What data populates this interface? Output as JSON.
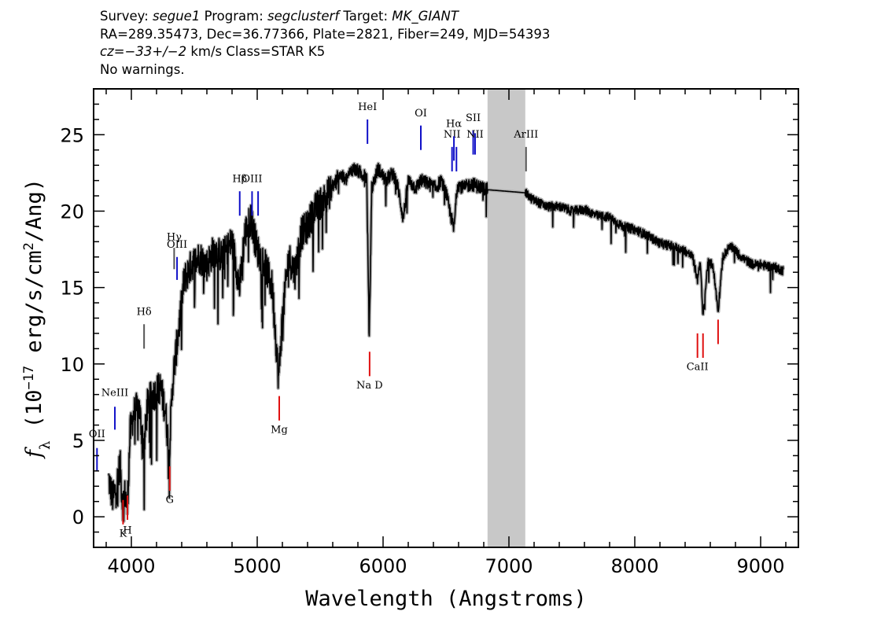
{
  "header": {
    "line1_prefix_survey": "Survey: ",
    "survey": "segue1",
    "line1_prefix_program": " Program: ",
    "program": "segclusterf",
    "line1_prefix_target": " Target: ",
    "target": "MK_GIANT",
    "line2": "RA=289.35473, Dec=36.77366, Plate=2821, Fiber=249, MJD=54393",
    "line3_cz": "cz=−33+/−2",
    "line3_rest": " km/s Class=STAR K5",
    "line4": "No warnings."
  },
  "chart_data": {
    "type": "line",
    "xlabel": "Wavelength (Angstroms)",
    "ylabel": "f_λ (10^-17 erg/s/cm^2/Ang)",
    "ylabel_parts": {
      "f": "f",
      "lambda": "λ",
      "open": " (10",
      "exp1": "−17",
      "mid": " erg/s/cm",
      "exp2": "2",
      "close": "/Ang)"
    },
    "xlim": [
      3700,
      9300
    ],
    "ylim": [
      -2,
      28
    ],
    "x_ticks": [
      4000,
      5000,
      6000,
      7000,
      8000,
      9000
    ],
    "x_tick_labels": [
      "4000",
      "5000",
      "6000",
      "7000",
      "8000",
      "9000"
    ],
    "y_ticks": [
      0,
      5,
      10,
      15,
      20,
      25
    ],
    "y_tick_labels": [
      "0",
      "5",
      "10",
      "15",
      "20",
      "25"
    ],
    "masked_region": [
      6830,
      7130
    ],
    "colors": {
      "spectrum": "#000000",
      "error": "#b0b0b0",
      "emission": "#1010c8",
      "absorption": "#e01010",
      "neutral": "#555555",
      "mask": "#c8c8c8"
    },
    "spectrum_envelope": [
      {
        "x": 3820,
        "y": 2.5
      },
      {
        "x": 3850,
        "y": 1.2
      },
      {
        "x": 3880,
        "y": 1.8
      },
      {
        "x": 3910,
        "y": 3.5
      },
      {
        "x": 3930,
        "y": 0.8
      },
      {
        "x": 3950,
        "y": 1.5
      },
      {
        "x": 3968,
        "y": 0.6
      },
      {
        "x": 3990,
        "y": 5.5
      },
      {
        "x": 4020,
        "y": 6.8
      },
      {
        "x": 4060,
        "y": 7.2
      },
      {
        "x": 4101,
        "y": 4.5
      },
      {
        "x": 4130,
        "y": 7.5
      },
      {
        "x": 4180,
        "y": 8.0
      },
      {
        "x": 4230,
        "y": 8.5
      },
      {
        "x": 4270,
        "y": 7.0
      },
      {
        "x": 4300,
        "y": 4.2
      },
      {
        "x": 4330,
        "y": 9.0
      },
      {
        "x": 4380,
        "y": 12.5
      },
      {
        "x": 4420,
        "y": 15.5
      },
      {
        "x": 4480,
        "y": 16.5
      },
      {
        "x": 4540,
        "y": 17.0
      },
      {
        "x": 4600,
        "y": 16.5
      },
      {
        "x": 4660,
        "y": 17.5
      },
      {
        "x": 4720,
        "y": 17.0
      },
      {
        "x": 4800,
        "y": 18.0
      },
      {
        "x": 4861,
        "y": 15.0
      },
      {
        "x": 4900,
        "y": 18.5
      },
      {
        "x": 4950,
        "y": 19.5
      },
      {
        "x": 5000,
        "y": 17.5
      },
      {
        "x": 5060,
        "y": 16.5
      },
      {
        "x": 5120,
        "y": 15.0
      },
      {
        "x": 5170,
        "y": 9.0
      },
      {
        "x": 5200,
        "y": 13.0
      },
      {
        "x": 5250,
        "y": 17.0
      },
      {
        "x": 5300,
        "y": 16.0
      },
      {
        "x": 5350,
        "y": 18.5
      },
      {
        "x": 5400,
        "y": 19.0
      },
      {
        "x": 5450,
        "y": 20.0
      },
      {
        "x": 5500,
        "y": 20.5
      },
      {
        "x": 5550,
        "y": 21.0
      },
      {
        "x": 5600,
        "y": 21.5
      },
      {
        "x": 5650,
        "y": 22.5
      },
      {
        "x": 5700,
        "y": 22.0
      },
      {
        "x": 5760,
        "y": 22.8
      },
      {
        "x": 5820,
        "y": 22.5
      },
      {
        "x": 5870,
        "y": 22.2
      },
      {
        "x": 5890,
        "y": 11.8
      },
      {
        "x": 5910,
        "y": 21.5
      },
      {
        "x": 5960,
        "y": 22.8
      },
      {
        "x": 6020,
        "y": 22.0
      },
      {
        "x": 6080,
        "y": 22.5
      },
      {
        "x": 6120,
        "y": 21.5
      },
      {
        "x": 6160,
        "y": 19.5
      },
      {
        "x": 6200,
        "y": 22.0
      },
      {
        "x": 6260,
        "y": 21.5
      },
      {
        "x": 6300,
        "y": 22.0
      },
      {
        "x": 6360,
        "y": 21.8
      },
      {
        "x": 6420,
        "y": 21.5
      },
      {
        "x": 6460,
        "y": 22.0
      },
      {
        "x": 6500,
        "y": 21.2
      },
      {
        "x": 6530,
        "y": 20.0
      },
      {
        "x": 6563,
        "y": 18.8
      },
      {
        "x": 6590,
        "y": 21.8
      },
      {
        "x": 6640,
        "y": 21.5
      },
      {
        "x": 6700,
        "y": 21.8
      },
      {
        "x": 6760,
        "y": 21.6
      },
      {
        "x": 6830,
        "y": 21.4
      },
      {
        "x": 7130,
        "y": 21.2
      },
      {
        "x": 7180,
        "y": 20.8
      },
      {
        "x": 7250,
        "y": 20.5
      },
      {
        "x": 7300,
        "y": 20.3
      },
      {
        "x": 7400,
        "y": 20.3
      },
      {
        "x": 7500,
        "y": 20.0
      },
      {
        "x": 7600,
        "y": 20.1
      },
      {
        "x": 7700,
        "y": 19.7
      },
      {
        "x": 7800,
        "y": 19.6
      },
      {
        "x": 7900,
        "y": 19.0
      },
      {
        "x": 8000,
        "y": 18.8
      },
      {
        "x": 8100,
        "y": 18.4
      },
      {
        "x": 8200,
        "y": 17.9
      },
      {
        "x": 8300,
        "y": 17.7
      },
      {
        "x": 8400,
        "y": 17.4
      },
      {
        "x": 8460,
        "y": 17.0
      },
      {
        "x": 8498,
        "y": 15.5
      },
      {
        "x": 8520,
        "y": 16.8
      },
      {
        "x": 8542,
        "y": 13.0
      },
      {
        "x": 8580,
        "y": 16.6
      },
      {
        "x": 8620,
        "y": 16.5
      },
      {
        "x": 8662,
        "y": 13.5
      },
      {
        "x": 8700,
        "y": 17.0
      },
      {
        "x": 8760,
        "y": 17.8
      },
      {
        "x": 8820,
        "y": 17.2
      },
      {
        "x": 8880,
        "y": 16.8
      },
      {
        "x": 8940,
        "y": 16.5
      },
      {
        "x": 9000,
        "y": 16.5
      },
      {
        "x": 9060,
        "y": 16.4
      },
      {
        "x": 9120,
        "y": 16.3
      },
      {
        "x": 9180,
        "y": 16.1
      }
    ],
    "spectral_lines": [
      {
        "label": "OII",
        "x": 3727,
        "y0": 3.0,
        "y1": 4.5,
        "label_y": 5.2,
        "kind": "emission"
      },
      {
        "label": "NeIII",
        "x": 3869,
        "y0": 5.7,
        "y1": 7.2,
        "label_y": 7.9,
        "kind": "emission"
      },
      {
        "label": "Hδ",
        "x": 4101,
        "y0": 11.0,
        "y1": 12.6,
        "label_y": 13.2,
        "kind": "neutral"
      },
      {
        "label": "Hγ",
        "x": 4340,
        "y0": 16.2,
        "y1": 17.6,
        "label_y": 18.1,
        "kind": "neutral"
      },
      {
        "label": "OIII",
        "x": 4363,
        "y0": 15.5,
        "y1": 17.0,
        "label_y": 17.6,
        "kind": "emission"
      },
      {
        "label": "Hβ",
        "x": 4861,
        "y0": 19.7,
        "y1": 21.3,
        "label_y": 21.9,
        "kind": "emission"
      },
      {
        "label": "OIII",
        "x": 4959,
        "y0": 19.7,
        "y1": 21.3,
        "label_y": 21.9,
        "kind": "emission"
      },
      {
        "label": "",
        "x": 5007,
        "y0": 19.7,
        "y1": 21.3,
        "label_y": 21.9,
        "kind": "emission"
      },
      {
        "label": "HeI",
        "x": 5876,
        "y0": 24.4,
        "y1": 26.0,
        "label_y": 26.6,
        "kind": "emission"
      },
      {
        "label": "OI",
        "x": 6300,
        "y0": 24.0,
        "y1": 25.6,
        "label_y": 26.2,
        "kind": "emission"
      },
      {
        "label": "NII",
        "x": 6548,
        "y0": 22.6,
        "y1": 24.2,
        "label_y": 24.8,
        "kind": "emission"
      },
      {
        "label": "Hα",
        "x": 6563,
        "y0": 23.3,
        "y1": 24.9,
        "label_y": 25.5,
        "kind": "emission"
      },
      {
        "label": "",
        "x": 6583,
        "y0": 22.6,
        "y1": 24.2,
        "label_y": 24.8,
        "kind": "emission"
      },
      {
        "label": "SII",
        "x": 6716,
        "y0": 23.7,
        "y1": 25.3,
        "label_y": 25.9,
        "kind": "emission"
      },
      {
        "label": "NII",
        "x": 6731,
        "y0": 23.7,
        "y1": 25.1,
        "label_y": 24.8,
        "kind": "emission"
      },
      {
        "label": "ArIII",
        "x": 7136,
        "y0": 22.6,
        "y1": 24.2,
        "label_y": 24.8,
        "kind": "neutral"
      },
      {
        "label": "K",
        "x": 3934,
        "y0": -0.5,
        "y1": 1.1,
        "label_y": -1.3,
        "kind": "absorption"
      },
      {
        "label": "H",
        "x": 3969,
        "y0": -0.2,
        "y1": 1.4,
        "label_y": -1.1,
        "kind": "absorption"
      },
      {
        "label": "G",
        "x": 4305,
        "y0": 1.7,
        "y1": 3.3,
        "label_y": 0.9,
        "kind": "absorption"
      },
      {
        "label": "Mg",
        "x": 5175,
        "y0": 6.3,
        "y1": 7.9,
        "label_y": 5.5,
        "kind": "absorption"
      },
      {
        "label": "Na  D",
        "x": 5893,
        "y0": 9.2,
        "y1": 10.8,
        "label_y": 8.4,
        "kind": "absorption"
      },
      {
        "label": "CaII",
        "x": 8498,
        "y0": 10.4,
        "y1": 12.0,
        "label_y": 9.6,
        "kind": "absorption"
      },
      {
        "label": "",
        "x": 8542,
        "y0": 10.4,
        "y1": 12.0,
        "label_y": 9.6,
        "kind": "absorption"
      },
      {
        "label": "",
        "x": 8662,
        "y0": 11.3,
        "y1": 12.9,
        "label_y": 10.5,
        "kind": "absorption"
      }
    ]
  }
}
